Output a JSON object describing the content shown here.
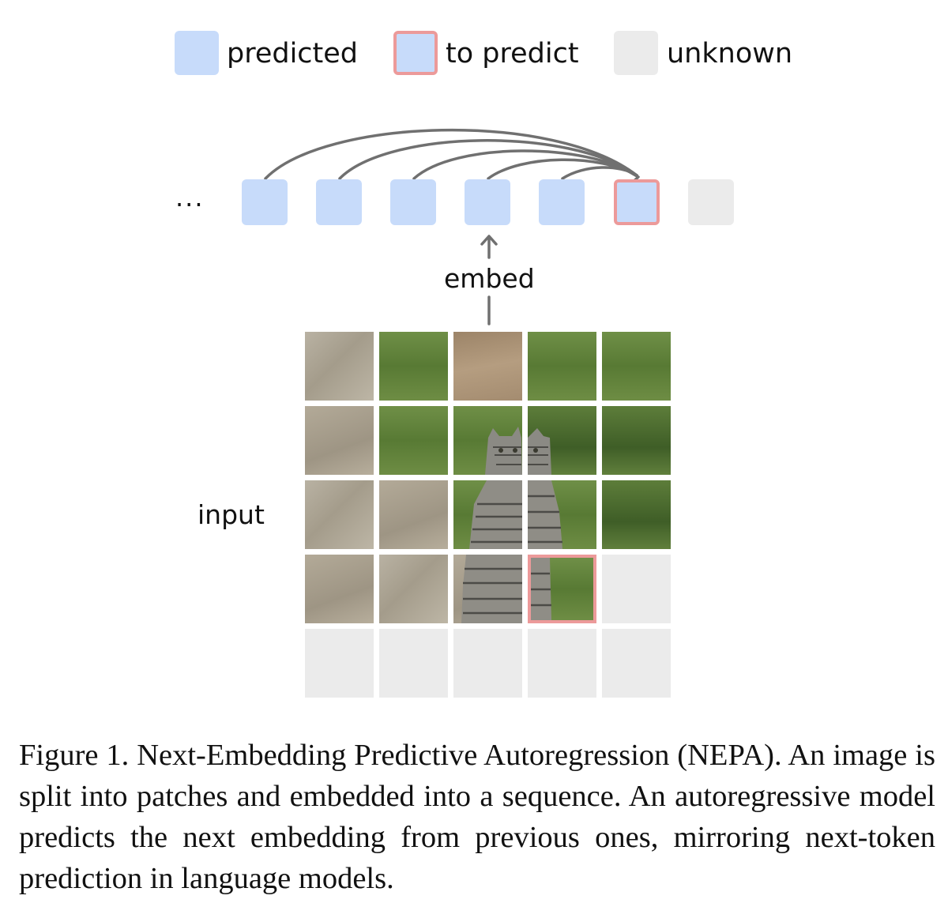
{
  "legend": {
    "predicted": "predicted",
    "to_predict": "to predict",
    "unknown": "unknown"
  },
  "sequence": {
    "ellipsis": "...",
    "tokens": [
      "predicted",
      "predicted",
      "predicted",
      "predicted",
      "predicted",
      "to predict",
      "unknown"
    ]
  },
  "labels": {
    "embed": "embed",
    "input": "input"
  },
  "grid": {
    "rows": 5,
    "cols": 5,
    "to_predict_cell": "row 4, col 4",
    "unknown_cells": "row 4 col 5, all of row 5"
  },
  "caption": "Figure 1. Next-Embedding Predictive Autoregression (NEPA). An image is split into patches and embedded into a sequence.  An autoregressive model predicts the next embedding from previous ones, mirroring next-token prediction in language models.",
  "colors": {
    "predicted": "#c7dbfa",
    "to_predict_border": "#ec9a9a",
    "unknown": "#ebebeb",
    "arrow": "#707070"
  }
}
